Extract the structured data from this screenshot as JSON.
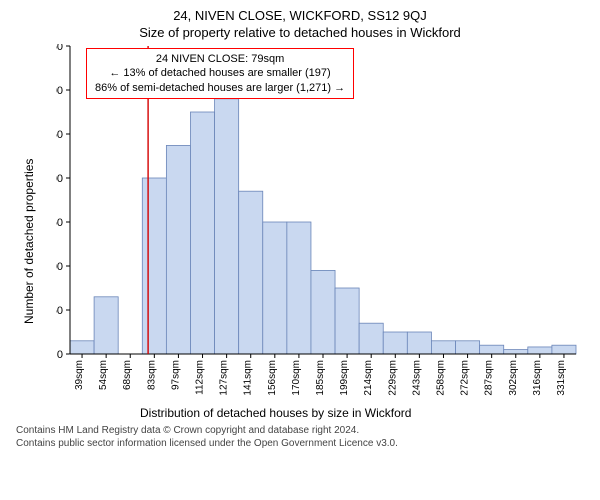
{
  "header": {
    "address": "24, NIVEN CLOSE, WICKFORD, SS12 9QJ",
    "subtitle": "Size of property relative to detached houses in Wickford"
  },
  "callout": {
    "line1": "24 NIVEN CLOSE: 79sqm",
    "line2": "← 13% of detached houses are smaller (197)",
    "line3": "86% of semi-detached houses are larger (1,271) →",
    "border_color": "#d40000"
  },
  "chart": {
    "type": "histogram",
    "ylabel": "Number of detached properties",
    "xlabel": "Distribution of detached houses by size in Wickford",
    "bar_fill": "#c9d8f0",
    "bar_stroke": "#6a85b8",
    "axis_color": "#000000",
    "marker_line_color": "#d40000",
    "marker_x_value": 79,
    "ylim": [
      0,
      350
    ],
    "ytick_step": 50,
    "x_bin_width": 14.5,
    "x_start": 32,
    "x_labels": [
      "39sqm",
      "54sqm",
      "68sqm",
      "83sqm",
      "97sqm",
      "112sqm",
      "127sqm",
      "141sqm",
      "156sqm",
      "170sqm",
      "185sqm",
      "199sqm",
      "214sqm",
      "229sqm",
      "243sqm",
      "258sqm",
      "272sqm",
      "287sqm",
      "302sqm",
      "316sqm",
      "331sqm"
    ],
    "values": [
      15,
      65,
      0,
      200,
      237,
      275,
      290,
      185,
      150,
      150,
      95,
      75,
      35,
      25,
      25,
      15,
      15,
      10,
      5,
      8,
      10
    ]
  },
  "footer": {
    "line1": "Contains HM Land Registry data © Crown copyright and database right 2024.",
    "line2": "Contains public sector information licensed under the Open Government Licence v3.0."
  }
}
